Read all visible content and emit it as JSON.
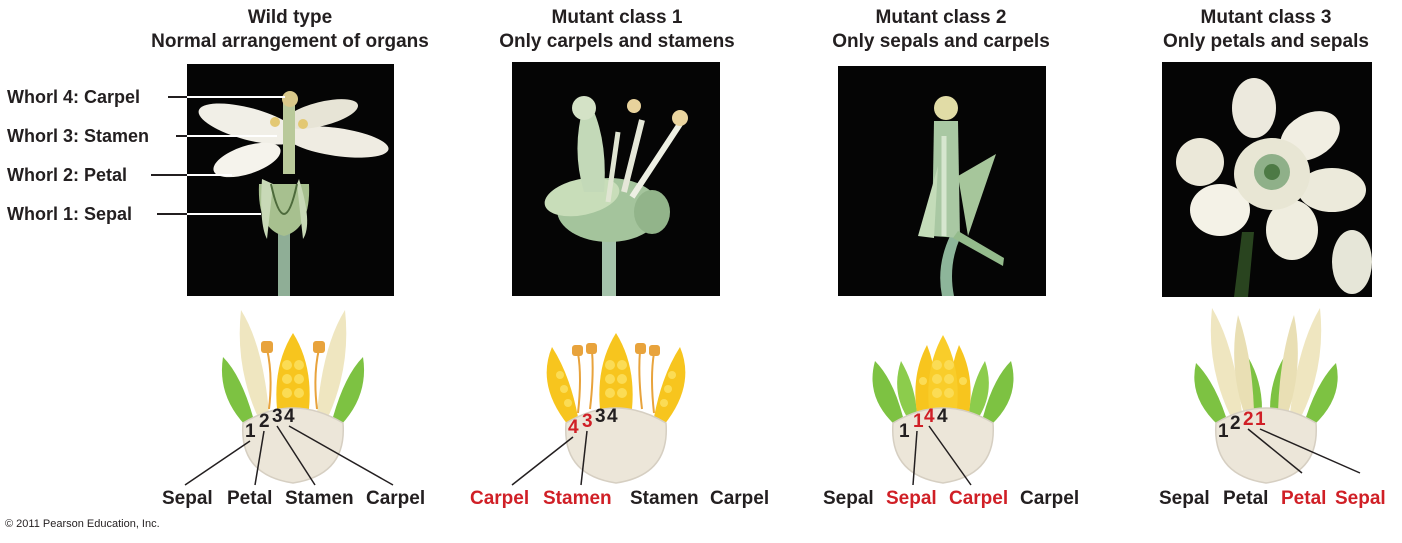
{
  "panels": [
    {
      "title": "Wild type",
      "subtitle": "Normal arrangement of organs",
      "organs": [
        {
          "text": "Sepal",
          "red": false
        },
        {
          "text": "Petal",
          "red": false
        },
        {
          "text": "Stamen",
          "red": false
        },
        {
          "text": "Carpel",
          "red": false
        }
      ],
      "numbers": [
        "1",
        "2",
        "3",
        "4"
      ]
    },
    {
      "title": "Mutant class 1",
      "subtitle": "Only carpels and stamens",
      "organs": [
        {
          "text": "Carpel",
          "red": true
        },
        {
          "text": "Stamen",
          "red": true
        },
        {
          "text": "Stamen",
          "red": false
        },
        {
          "text": "Carpel",
          "red": false
        }
      ],
      "numbers": [
        "4",
        "3",
        "3",
        "4"
      ]
    },
    {
      "title": "Mutant class 2",
      "subtitle": "Only sepals and carpels",
      "organs": [
        {
          "text": "Sepal",
          "red": false
        },
        {
          "text": "Sepal",
          "red": true
        },
        {
          "text": "Carpel",
          "red": true
        },
        {
          "text": "Carpel",
          "red": false
        }
      ],
      "numbers": [
        "1",
        "1",
        "4",
        "4"
      ]
    },
    {
      "title": "Mutant class 3",
      "subtitle": "Only petals and sepals",
      "organs": [
        {
          "text": "Sepal",
          "red": false
        },
        {
          "text": "Petal",
          "red": false
        },
        {
          "text": "Petal",
          "red": true
        },
        {
          "text": "Sepal",
          "red": true
        }
      ],
      "numbers": [
        "1",
        "2",
        "2",
        "1"
      ]
    }
  ],
  "whorl_labels": [
    "Whorl 4: Carpel",
    "Whorl 3: Stamen",
    "Whorl 2: Petal",
    "Whorl 1: Sepal"
  ],
  "copyright": "© 2011 Pearson Education, Inc.",
  "colors": {
    "mutated": "#d01f26",
    "text": "#231f20",
    "sepal": "#7dc242",
    "petal": "#efe6c0",
    "stamen": "#e8a33c",
    "carpel": "#f7c51e",
    "receptacle": "#ece6d9"
  }
}
